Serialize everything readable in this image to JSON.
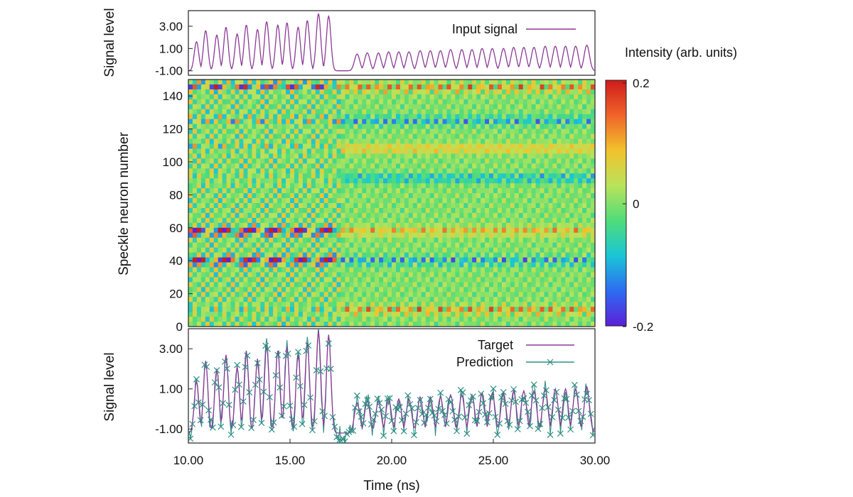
{
  "chart_data": [
    {
      "type": "line",
      "panel": "top",
      "ylabel": "Signal level",
      "yticks": [
        "3.00",
        "1.00",
        "-1.00"
      ],
      "ylim": [
        -1.4,
        4.4
      ],
      "xlim": [
        10.0,
        30.0
      ],
      "legend_position": "top-right",
      "series": [
        {
          "name": "Input signal",
          "color": "#8b3a96",
          "x": [
            10.4,
            10.85,
            11.4,
            11.85,
            12.4,
            12.85,
            13.4,
            13.85,
            14.4,
            14.85,
            15.4,
            15.85,
            16.4,
            16.9,
            18.3,
            18.8,
            19.35,
            19.85,
            20.35,
            20.85,
            21.4,
            21.9,
            22.4,
            22.9,
            23.45,
            23.95,
            24.45,
            24.95,
            25.5,
            26.0,
            26.5,
            27.0,
            27.55,
            28.05,
            28.55,
            29.05,
            29.6
          ],
          "peaks": [
            1.6,
            2.6,
            2.2,
            2.9,
            2.3,
            3.1,
            2.7,
            3.4,
            3.1,
            3.3,
            2.9,
            3.5,
            4.1,
            3.9,
            0.5,
            0.6,
            0.6,
            0.7,
            0.7,
            0.7,
            0.8,
            0.8,
            0.8,
            0.9,
            0.9,
            0.9,
            1.0,
            1.0,
            1.0,
            1.1,
            1.1,
            1.1,
            1.2,
            1.2,
            1.2,
            1.2,
            1.3
          ],
          "baseline": -1.0
        }
      ]
    },
    {
      "type": "heatmap",
      "panel": "middle",
      "ylabel": "Speckle neuron number",
      "yticks": [
        0,
        20,
        40,
        60,
        80,
        100,
        120,
        140
      ],
      "ylim": [
        0,
        150
      ],
      "xlim": [
        10.0,
        30.0
      ],
      "colorbar": {
        "title": "Intensity (arb. units)",
        "min": -0.2,
        "max": 0.2,
        "tick_labels": [
          "0.2",
          "0",
          "-0.2"
        ],
        "colors": [
          "#5b20d8",
          "#2e6cf2",
          "#19c6d6",
          "#4fdc7a",
          "#b9e35a",
          "#f2c22c",
          "#f0642a",
          "#cf1b1b"
        ]
      },
      "regime_change_time": 17.5,
      "strong_rows": [
        5,
        25,
        42,
        60,
        92,
        110,
        140
      ]
    },
    {
      "type": "line",
      "panel": "bottom",
      "ylabel": "Signal level",
      "yticks": [
        "3.00",
        "1.00",
        "-1.00"
      ],
      "ylim": [
        -1.7,
        4.0
      ],
      "xlim": [
        10.0,
        30.0
      ],
      "xlabel": "Time (ns)",
      "xticks": [
        "10.00",
        "15.00",
        "20.00",
        "25.00",
        "30.00"
      ],
      "legend_position": "top-right",
      "series": [
        {
          "name": "Target",
          "color": "#8b3a96",
          "marker": "none"
        },
        {
          "name": "Prediction",
          "color": "#2f8f83",
          "marker": "x"
        }
      ]
    }
  ]
}
